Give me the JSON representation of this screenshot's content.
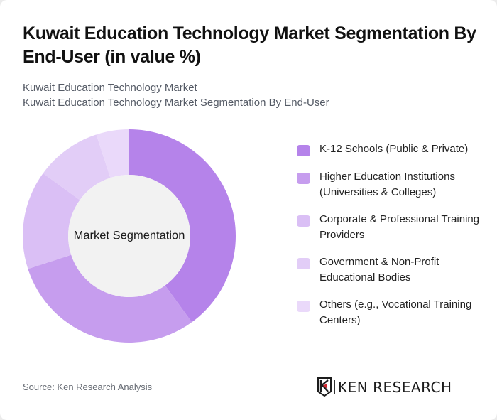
{
  "header": {
    "title": "Kuwait Education Technology Market Segmentation By End-User (in value %)",
    "subtitle_lines": [
      "Kuwait Education Technology Market",
      "Kuwait Education Technology Market Segmentation By End-User"
    ]
  },
  "chart": {
    "center_label": "Market Segmentation"
  },
  "legend": {
    "items": [
      {
        "label": "K-12 Schools (Public & Private)",
        "color": "#B583EA"
      },
      {
        "label": "Higher Education Institutions (Universities & Colleges)",
        "color": "#C69DEE"
      },
      {
        "label": "Corporate & Professional Training Providers",
        "color": "#DABFF5"
      },
      {
        "label": "Government & Non-Profit Educational Bodies",
        "color": "#E2CDF7"
      },
      {
        "label": "Others (e.g., Vocational Training Centers)",
        "color": "#EAD9FA"
      }
    ]
  },
  "footer": {
    "source": "Source: Ken Research Analysis",
    "logo_text": "KEN RESEARCH"
  },
  "chart_data": {
    "type": "pie",
    "variant": "donut",
    "title": "Kuwait Education Technology Market Segmentation By End-User (in value %)",
    "subtitle": "Kuwait Education Technology Market Segmentation By End-User",
    "center_label": "Market Segmentation",
    "categories": [
      "K-12 Schools (Public & Private)",
      "Higher Education Institutions (Universities & Colleges)",
      "Corporate & Professional Training Providers",
      "Government & Non-Profit Educational Bodies",
      "Others (e.g., Vocational Training Centers)"
    ],
    "values": [
      40,
      30,
      15,
      10,
      5
    ],
    "unit": "%",
    "colors": [
      "#B583EA",
      "#C69DEE",
      "#DABFF5",
      "#E2CDF7",
      "#EAD9FA"
    ],
    "start_angle": "12 o'clock, clockwise",
    "legend_position": "right",
    "source": "Source: Ken Research Analysis"
  }
}
